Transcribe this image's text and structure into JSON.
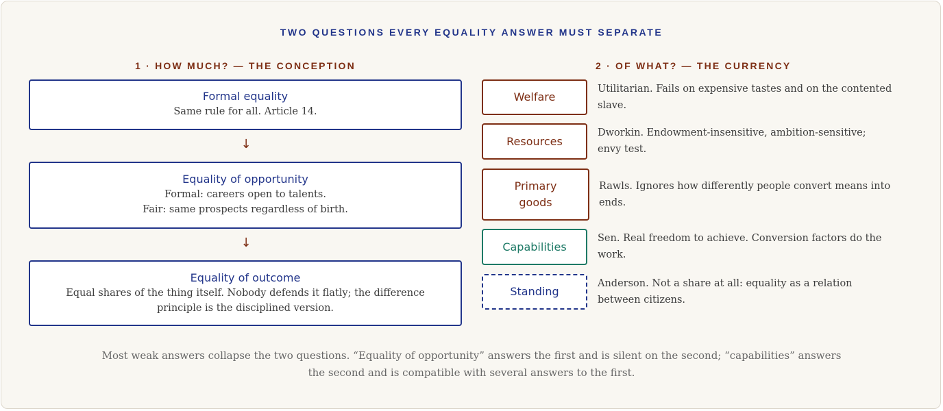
{
  "title": "TWO QUESTIONS EVERY EQUALITY ANSWER MUST SEPARATE",
  "conception": {
    "heading": "1 · HOW MUCH? — THE CONCEPTION",
    "arrow_glyph": "↓",
    "boxes": [
      {
        "title": "Formal equality",
        "lines": [
          "Same rule for all. Article 14."
        ]
      },
      {
        "title": "Equality of opportunity",
        "lines": [
          "Formal: careers open to talents.",
          "Fair: same prospects regardless of birth."
        ]
      },
      {
        "title": "Equality of outcome",
        "lines": [
          "Equal shares of the thing itself. Nobody defends it flatly; the difference",
          "principle is the disciplined version."
        ]
      }
    ]
  },
  "currency": {
    "heading": "2 · OF WHAT? — THE CURRENCY",
    "items": [
      {
        "label_lines": [
          "Welfare"
        ],
        "desc_lines": [
          "Utilitarian. Fails on expensive tastes and on the contented",
          "slave."
        ]
      },
      {
        "label_lines": [
          "Resources"
        ],
        "desc_lines": [
          "Dworkin. Endowment-insensitive, ambition-sensitive;",
          "envy test."
        ]
      },
      {
        "label_lines": [
          "Primary",
          "goods"
        ],
        "desc_lines": [
          "Rawls. Ignores how differently people convert means into",
          "ends."
        ]
      },
      {
        "label_lines": [
          "Capabilities"
        ],
        "desc_lines": [
          "Sen. Real freedom to achieve. Conversion factors do the",
          "work."
        ]
      },
      {
        "label_lines": [
          "Standing"
        ],
        "desc_lines": [
          "Anderson. Not a share at all: equality as a relation",
          "between citizens."
        ]
      }
    ]
  },
  "footer": {
    "lines": [
      "Most weak answers collapse the two questions. “Equality of opportunity” answers the first and is silent on the second; “capabilities” answers",
      "the second and is compatible with several answers to the first."
    ]
  },
  "colors": {
    "navy": "#22358a",
    "rust": "#7d2e14",
    "teal": "#1e7a66",
    "background": "#f9f7f2"
  }
}
